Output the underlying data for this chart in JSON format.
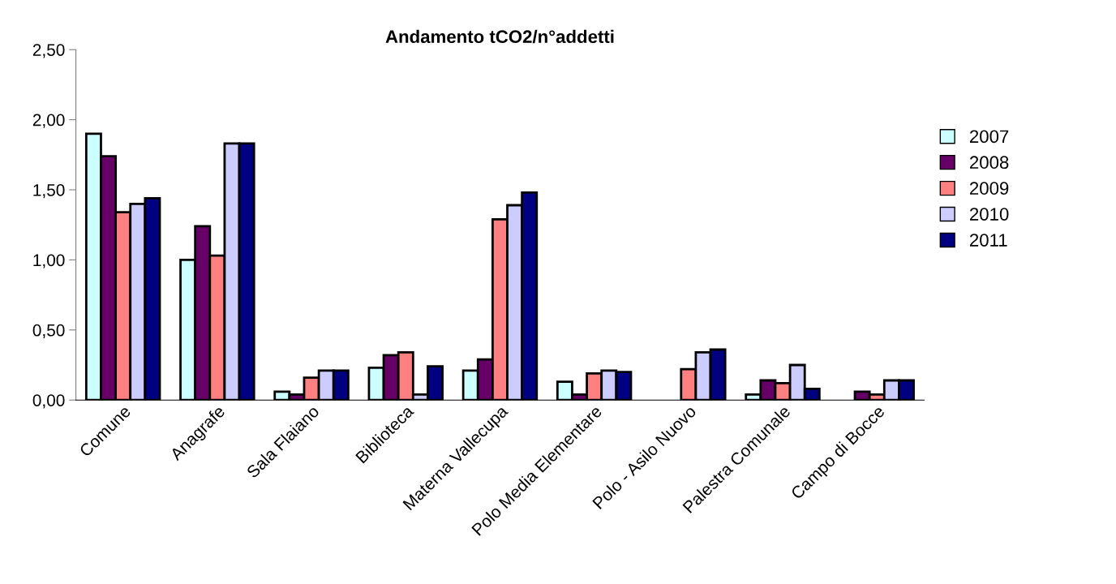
{
  "chart_data": {
    "type": "bar",
    "title": "Andamento tCO2/n°addetti",
    "categories": [
      "Comune",
      "Anagrafe",
      "Sala Flaiano",
      "Biblioteca",
      "Materna Vallecupa",
      "Polo Media Elementare",
      "Polo - Asilo Nuovo",
      "Palestra Comunale",
      "Campo di Bocce"
    ],
    "series": [
      {
        "name": "2007",
        "color": "#ccffff",
        "values": [
          1.9,
          1.0,
          0.06,
          0.23,
          0.21,
          0.13,
          null,
          0.04,
          null
        ]
      },
      {
        "name": "2008",
        "color": "#660066",
        "values": [
          1.74,
          1.24,
          0.04,
          0.32,
          0.29,
          0.04,
          null,
          0.14,
          0.06
        ]
      },
      {
        "name": "2009",
        "color": "#ff8080",
        "values": [
          1.34,
          1.03,
          0.16,
          0.34,
          1.29,
          0.19,
          0.22,
          0.12,
          0.04
        ]
      },
      {
        "name": "2010",
        "color": "#ccccff",
        "values": [
          1.4,
          1.83,
          0.21,
          0.04,
          1.39,
          0.21,
          0.34,
          0.25,
          0.14
        ]
      },
      {
        "name": "2011",
        "color": "#000080",
        "values": [
          1.44,
          1.83,
          0.21,
          0.24,
          1.48,
          0.2,
          0.36,
          0.08,
          0.14
        ]
      }
    ],
    "ylim": [
      0,
      2.5
    ],
    "yticks": [
      {
        "value": 0,
        "label": "0,00"
      },
      {
        "value": 0.5,
        "label": "0,50"
      },
      {
        "value": 1,
        "label": "1,00"
      },
      {
        "value": 1.5,
        "label": "1,50"
      },
      {
        "value": 2,
        "label": "2,00"
      },
      {
        "value": 2.5,
        "label": "2,50"
      }
    ],
    "grid": false,
    "legend": "right"
  }
}
